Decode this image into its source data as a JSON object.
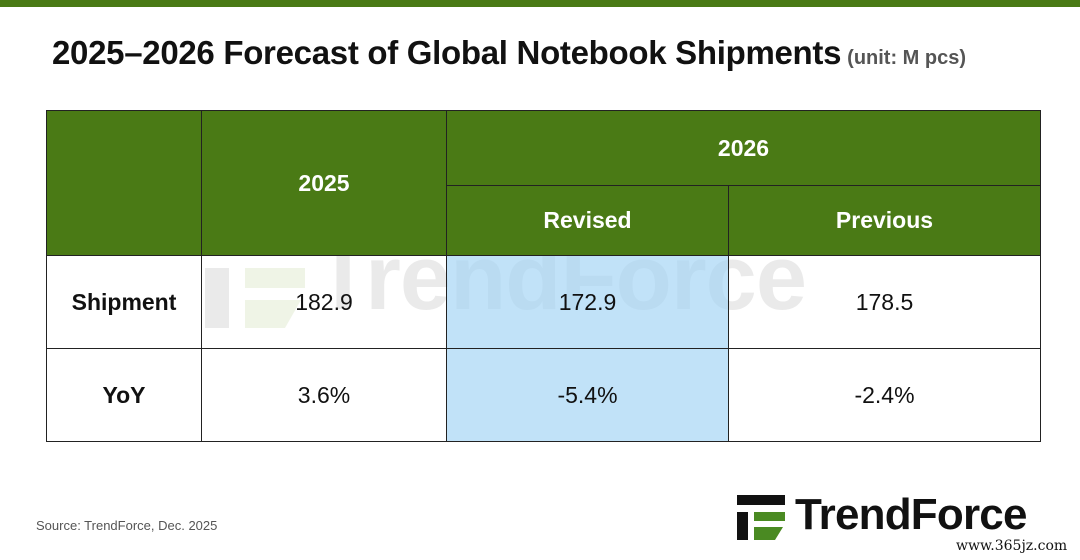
{
  "title": "2025–2026 Forecast of Global Notebook Shipments",
  "unit": "(unit: M pcs)",
  "chart_data": {
    "type": "table",
    "columns": {
      "col_2025": "2025",
      "col_2026": "2026",
      "col_revised": "Revised",
      "col_previous": "Previous"
    },
    "rows": [
      {
        "label": "Shipment",
        "v2025": "182.9",
        "revised": "172.9",
        "previous": "178.5"
      },
      {
        "label": "YoY",
        "v2025": "3.6%",
        "revised": "-5.4%",
        "previous": "-2.4%"
      }
    ],
    "highlighted_column": "Revised"
  },
  "colors": {
    "header_green": "#4a7a15",
    "highlight_blue": "#b6dcf6"
  },
  "source": "Source: TrendForce, Dec. 2025",
  "watermark": "TrendForce",
  "logo_text": "TrendForce",
  "site": "www.365jz.com"
}
